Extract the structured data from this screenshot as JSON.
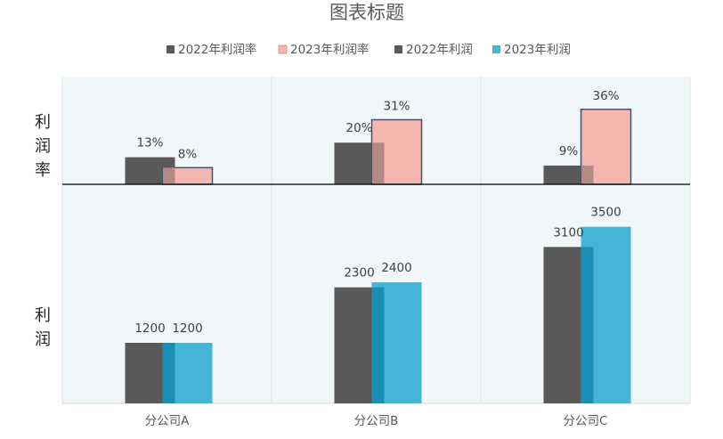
{
  "chart_data": {
    "type": "bar",
    "title": "图表标题",
    "categories": [
      "分公司A",
      "分公司B",
      "分公司C"
    ],
    "panels": [
      {
        "name": "利润率",
        "label_chars": [
          "利",
          "润",
          "率"
        ],
        "value_max": 50,
        "series": [
          {
            "name": "2022年利润率",
            "values": [
              13,
              20,
              9
            ],
            "labels": [
              "13%",
              "20%",
              "9%"
            ]
          },
          {
            "name": "2023年利润率",
            "values": [
              8,
              31,
              36
            ],
            "labels": [
              "8%",
              "31%",
              "36%"
            ]
          }
        ]
      },
      {
        "name": "利润",
        "label_chars": [
          "利",
          "润"
        ],
        "value_max": 4200,
        "series": [
          {
            "name": "2022年利润",
            "values": [
              1200,
              2300,
              3100
            ],
            "labels": [
              "1200",
              "2300",
              "3100"
            ]
          },
          {
            "name": "2023年利润",
            "values": [
              1200,
              2400,
              3500
            ],
            "labels": [
              "1200",
              "2400",
              "3500"
            ]
          }
        ]
      }
    ],
    "legend": [
      "2022年利润率",
      "2023年利润率",
      "2022年利润",
      "2023年利润"
    ],
    "legend_position": "top",
    "grid": false,
    "colors": {
      "2022年利润率": "#595959",
      "2023年利润率": "#f4b6ae",
      "2022年利润": "#595959",
      "2023年利润": "#45b5d7",
      "overlap_top": "#b38a84",
      "overlap_bottom": "#1a8fb5",
      "rate_border": "#44546a",
      "plot_bg": "#f1f7f8"
    }
  }
}
